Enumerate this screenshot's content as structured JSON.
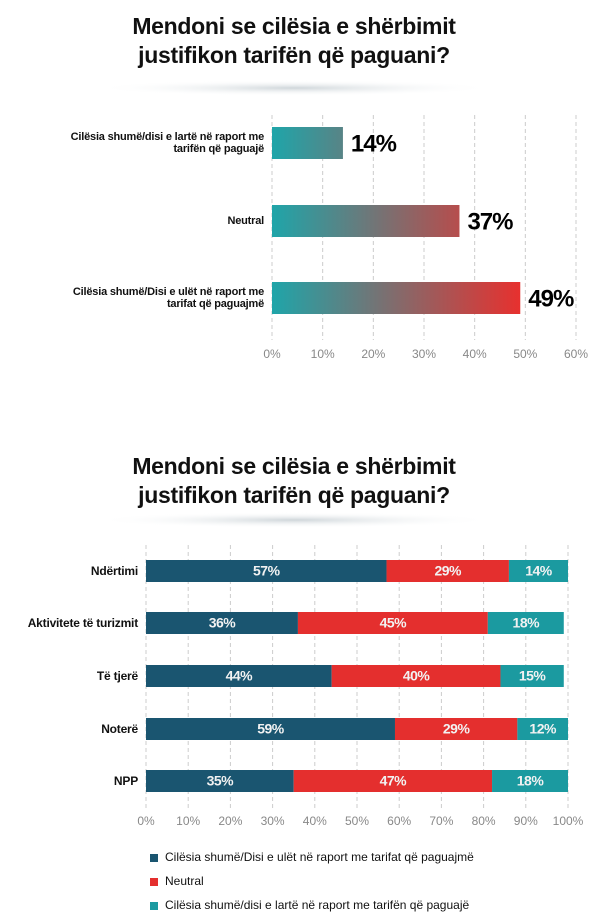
{
  "charts": [
    {
      "type": "bar",
      "orientation": "horizontal",
      "title": "Mendoni se cilësia e shërbimit justifikon tarifën që paguani?",
      "categories": [
        "Cilësia shumë/disi e lartë në raport me tarifën që paguajë",
        "Neutral",
        "Cilësia shumë/Disi e ulët në raport me tarifat që paguajmë"
      ],
      "values": [
        14,
        37,
        49
      ],
      "value_labels": [
        "14%",
        "37%",
        "49%"
      ],
      "gradient": [
        "#1fa5a9",
        "#e8302e"
      ],
      "xlim": [
        0,
        60
      ],
      "xticks": [
        {
          "value": 0,
          "label": "0%"
        },
        {
          "value": 10,
          "label": "10%"
        },
        {
          "value": 20,
          "label": "20%"
        },
        {
          "value": 30,
          "label": "30%"
        },
        {
          "value": 40,
          "label": "40%"
        },
        {
          "value": 50,
          "label": "50%"
        },
        {
          "value": 60,
          "label": "60%"
        }
      ],
      "grid": true
    },
    {
      "type": "stacked_bar",
      "orientation": "horizontal",
      "title": "Mendoni se cilësia e shërbimit justifikon tarifën që paguani?",
      "categories": [
        "Ndërtimi",
        "Aktivitete të turizmit",
        "Të tjerë",
        "Noterë",
        "NPP"
      ],
      "series": [
        {
          "name": "Cilësia shumë/Disi e ulët në raport me tarifat që paguajmë",
          "color": "#1a5570",
          "values": [
            57,
            36,
            44,
            59,
            35
          ],
          "value_labels": [
            "57%",
            "36%",
            "44%",
            "59%",
            "35%"
          ]
        },
        {
          "name": "Neutral",
          "color": "#e42f2e",
          "values": [
            29,
            45,
            40,
            29,
            47
          ],
          "value_labels": [
            "29%",
            "45%",
            "40%",
            "29%",
            "47%"
          ]
        },
        {
          "name": "Cilësia shumë/disi e lartë në raport me tarifën që paguajë",
          "color": "#1b9aa0",
          "values": [
            14,
            18,
            15,
            12,
            18
          ],
          "value_labels": [
            "14%",
            "18%",
            "15%",
            "12%",
            "18%"
          ]
        }
      ],
      "xlim": [
        0,
        100
      ],
      "xticks": [
        {
          "value": 0,
          "label": "0%"
        },
        {
          "value": 10,
          "label": "10%"
        },
        {
          "value": 20,
          "label": "20%"
        },
        {
          "value": 30,
          "label": "30%"
        },
        {
          "value": 40,
          "label": "40%"
        },
        {
          "value": 50,
          "label": "50%"
        },
        {
          "value": 60,
          "label": "60%"
        },
        {
          "value": 70,
          "label": "70%"
        },
        {
          "value": 80,
          "label": "80%"
        },
        {
          "value": 90,
          "label": "90%"
        },
        {
          "value": 100,
          "label": "100%"
        }
      ],
      "grid": true
    }
  ]
}
